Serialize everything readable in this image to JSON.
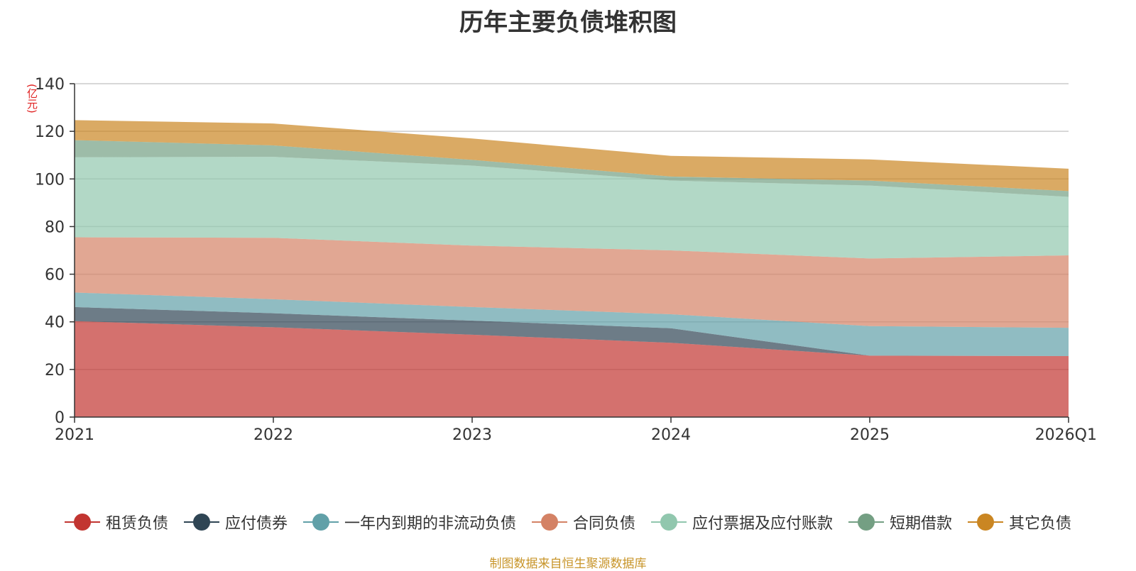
{
  "chart_data": {
    "type": "area",
    "stacked": true,
    "title": "历年主要负债堆积图",
    "unit_label": "(亿元)",
    "x": [
      "2021",
      "2022",
      "2023",
      "2024",
      "2025",
      "2026Q1"
    ],
    "ylim": [
      0,
      140
    ],
    "yticks": [
      0,
      20,
      40,
      60,
      80,
      100,
      120,
      140
    ],
    "grid": true,
    "legend_position": "bottom",
    "series": [
      {
        "name": "租赁负债",
        "color": "#c23531",
        "values": [
          40.3,
          37.7,
          34.6,
          31.2,
          25.8,
          25.6
        ]
      },
      {
        "name": "应付债券",
        "color": "#2f4554",
        "values": [
          5.9,
          5.9,
          5.9,
          6.1,
          0,
          0
        ]
      },
      {
        "name": "一年内到期的非流动负债",
        "color": "#61a0a8",
        "values": [
          6.1,
          5.9,
          5.7,
          5.9,
          12.4,
          11.9
        ]
      },
      {
        "name": "合同负债",
        "color": "#d48265",
        "values": [
          23.2,
          25.8,
          25.8,
          26.8,
          28.4,
          30.4
        ]
      },
      {
        "name": "应付票据及应付账款",
        "color": "#91c7ae",
        "values": [
          33.6,
          34.0,
          33.6,
          29.3,
          30.6,
          24.6
        ]
      },
      {
        "name": "短期借款",
        "color": "#749f83",
        "values": [
          7.2,
          4.8,
          2.4,
          1.7,
          2.1,
          2.4
        ]
      },
      {
        "name": "其它负债",
        "color": "#ca8622",
        "values": [
          8.4,
          9.2,
          9.0,
          8.7,
          8.9,
          9.4
        ]
      }
    ]
  },
  "source_note": "制图数据来自恒生聚源数据库"
}
